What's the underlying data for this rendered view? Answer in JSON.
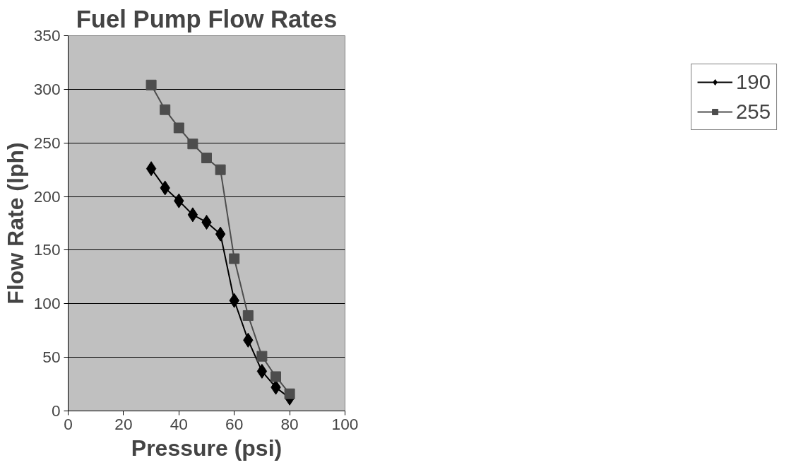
{
  "chart_data": {
    "type": "line",
    "title": "Fuel Pump Flow Rates",
    "xlabel": "Pressure (psi)",
    "ylabel": "Flow Rate (lph)",
    "xlim": [
      0,
      100
    ],
    "xticks": [
      0,
      20,
      40,
      60,
      80,
      100
    ],
    "ylim": [
      0,
      350
    ],
    "yticks": [
      0,
      50,
      100,
      150,
      200,
      250,
      300,
      350
    ],
    "grid": "y",
    "legend": "right",
    "line_style": "solid",
    "series": [
      {
        "name": "190",
        "color": "#000000",
        "marker": "diamond",
        "x": [
          30,
          35,
          40,
          45,
          50,
          55,
          60,
          65,
          70,
          75,
          80
        ],
        "values": [
          226,
          208,
          196,
          183,
          176,
          165,
          103,
          66,
          37,
          22,
          12
        ]
      },
      {
        "name": "255",
        "color": "#4d4d4d",
        "marker": "square",
        "x": [
          30,
          35,
          40,
          45,
          50,
          55,
          60,
          65,
          70,
          75,
          80
        ],
        "values": [
          304,
          281,
          264,
          249,
          236,
          225,
          142,
          89,
          51,
          32,
          16
        ]
      }
    ]
  }
}
